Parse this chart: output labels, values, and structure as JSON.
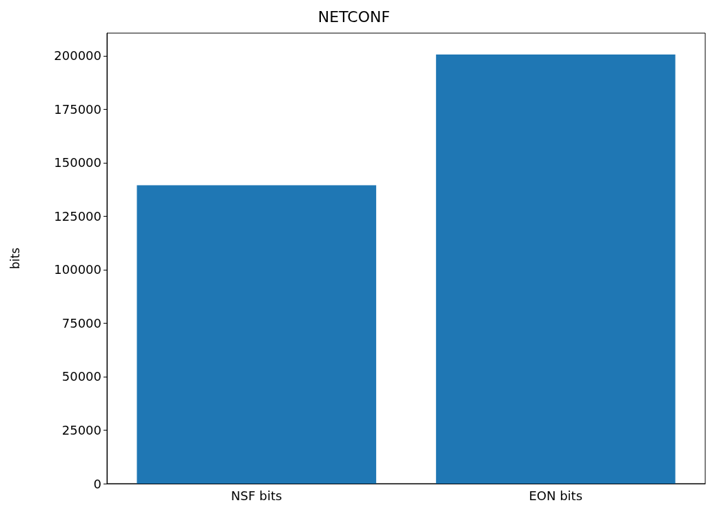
{
  "chart_data": {
    "type": "bar",
    "title": "NETCONF",
    "ylabel": "bits",
    "categories": [
      "NSF bits",
      "EON bits"
    ],
    "values": [
      139500,
      200600
    ],
    "color": "#1f77b4",
    "ylim": [
      0,
      210600
    ],
    "yticks": [
      0,
      25000,
      50000,
      75000,
      100000,
      125000,
      150000,
      175000,
      200000
    ],
    "grid": false
  }
}
